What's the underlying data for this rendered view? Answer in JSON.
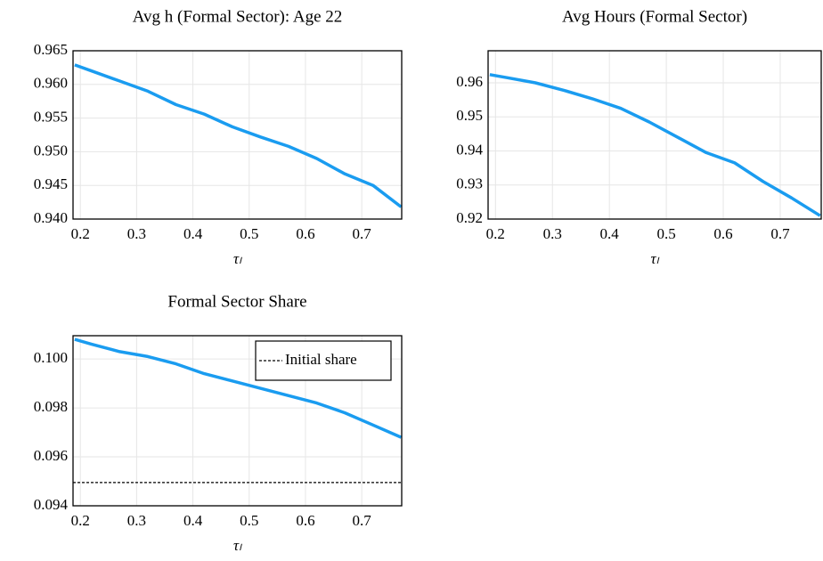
{
  "chart_data": [
    {
      "type": "line",
      "title": "Avg h (Formal Sector): Age 22",
      "x_label": "τₗ",
      "x": [
        0.19,
        0.22,
        0.27,
        0.32,
        0.37,
        0.42,
        0.47,
        0.52,
        0.57,
        0.62,
        0.67,
        0.72,
        0.77
      ],
      "series": [
        {
          "color": "#1a9cf0",
          "values": [
            0.9629,
            0.962,
            0.9605,
            0.959,
            0.957,
            0.9556,
            0.9537,
            0.9522,
            0.9508,
            0.949,
            0.9467,
            0.945,
            0.9418
          ]
        }
      ],
      "xlim": [
        0.187,
        0.771
      ],
      "ylim": [
        0.94,
        0.965
      ],
      "xticks": [
        0.2,
        0.3,
        0.4,
        0.5,
        0.6,
        0.7
      ],
      "yticks": [
        {
          "value": 0.94,
          "label": "0.940"
        },
        0.945,
        {
          "value": 0.95,
          "label": "0.950"
        },
        0.955,
        {
          "value": 0.96,
          "label": "0.960"
        },
        0.965
      ],
      "grid": true
    },
    {
      "type": "line",
      "title": "Avg Hours (Formal Sector)",
      "x_label": "τₗ",
      "x": [
        0.19,
        0.22,
        0.27,
        0.32,
        0.37,
        0.42,
        0.47,
        0.52,
        0.57,
        0.62,
        0.67,
        0.72,
        0.77
      ],
      "series": [
        {
          "color": "#1a9cf0",
          "values": [
            0.9624,
            0.9615,
            0.96,
            0.9578,
            0.9553,
            0.9525,
            0.9485,
            0.944,
            0.9395,
            0.9365,
            0.931,
            0.9262,
            0.921
          ]
        }
      ],
      "xlim": [
        0.187,
        0.772
      ],
      "ylim": [
        0.92,
        0.9694
      ],
      "xticks": [
        0.2,
        0.3,
        0.4,
        0.5,
        0.6,
        0.7
      ],
      "yticks": [
        0.92,
        0.93,
        0.94,
        0.95,
        0.96
      ],
      "grid": true
    },
    {
      "type": "line",
      "title": "Formal Sector Share",
      "x_label": "τₗ",
      "x": [
        0.19,
        0.22,
        0.27,
        0.32,
        0.37,
        0.42,
        0.47,
        0.52,
        0.57,
        0.62,
        0.67,
        0.72,
        0.77
      ],
      "series": [
        {
          "color": "#1a9cf0",
          "values": [
            0.1008,
            0.1006,
            0.1003,
            0.1001,
            0.0998,
            0.0994,
            0.0991,
            0.0988,
            0.0985,
            0.0982,
            0.0978,
            0.0973,
            0.0968
          ]
        }
      ],
      "hlines": [
        {
          "name": "Initial share",
          "value": 0.09495,
          "color": "#000000"
        }
      ],
      "xlim": [
        0.187,
        0.771
      ],
      "ylim": [
        0.094,
        0.10095
      ],
      "xticks": [
        0.2,
        0.3,
        0.4,
        0.5,
        0.6,
        0.7
      ],
      "yticks": [
        0.094,
        0.096,
        0.098,
        {
          "value": 0.1,
          "label": "0.100"
        }
      ],
      "grid": true,
      "legend": "top-right"
    }
  ]
}
